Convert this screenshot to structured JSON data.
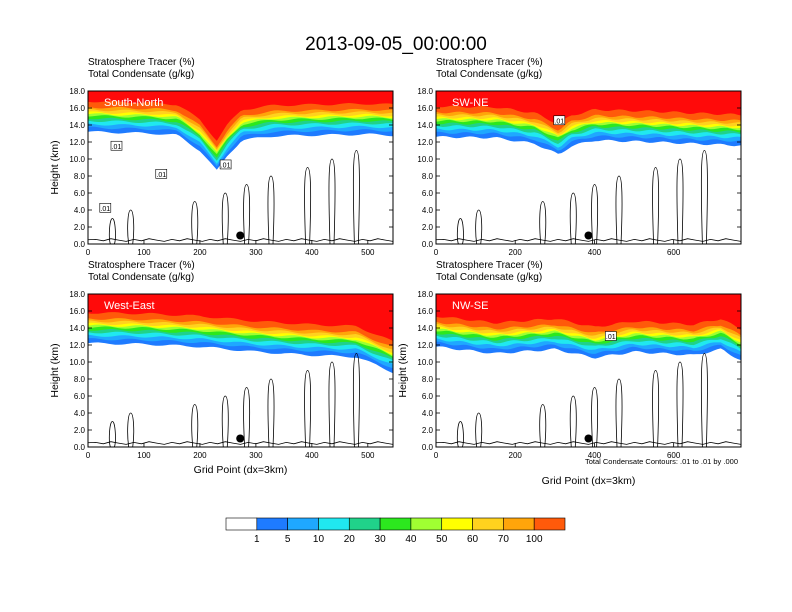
{
  "figure_title": "2013-09-05_00:00:00",
  "colors": {
    "levels": [
      "#ffffff",
      "#1e7bff",
      "#1fa8ff",
      "#20e8f0",
      "#20d28a",
      "#2ce81e",
      "#a0ff32",
      "#ffff00",
      "#ffd21e",
      "#ffa50a",
      "#ff5a0a",
      "#ff0a0a"
    ],
    "line": "#000000"
  },
  "colorbar": {
    "labels": [
      "1",
      "5",
      "10",
      "20",
      "30",
      "40",
      "50",
      "60",
      "70",
      "100"
    ]
  },
  "note": "Total Condensate Contours: .01 to .01 by .000",
  "chart_data": [
    {
      "type": "heatmap",
      "panel_title": "South-North",
      "title_line1": "Stratosphere Tracer   (%)",
      "title_line2": "Total Condensate   (g/kg)",
      "ylabel": "Height (km)",
      "xlabel": "",
      "xlim": [
        0,
        545
      ],
      "ylim": [
        0,
        18
      ],
      "xticks": [
        0,
        100,
        200,
        300,
        400,
        500
      ],
      "yticks": [
        "0.0",
        "2.0",
        "4.0",
        "6.0",
        "8.0",
        "10.0",
        "12.0",
        "14.0",
        "16.0",
        "18.0"
      ],
      "tracer_base_km": [
        [
          0,
          13.2
        ],
        [
          60,
          13.1
        ],
        [
          120,
          13.0
        ],
        [
          160,
          12.8
        ],
        [
          200,
          11.0
        ],
        [
          230,
          8.6
        ],
        [
          250,
          10.5
        ],
        [
          275,
          12.2
        ],
        [
          330,
          12.7
        ],
        [
          400,
          12.8
        ],
        [
          500,
          12.9
        ],
        [
          545,
          12.8
        ]
      ],
      "contour_labels": [
        {
          "x": 50,
          "y": 11.5,
          "t": ".01"
        },
        {
          "x": 130,
          "y": 8.2,
          "t": ".01"
        },
        {
          "x": 245,
          "y": 9.3,
          "t": ".01"
        },
        {
          "x": 30,
          "y": 4.2,
          "t": ".01"
        }
      ],
      "point": [
        272,
        1.0
      ]
    },
    {
      "type": "heatmap",
      "panel_title": "SW-NE",
      "title_line1": "Stratosphere Tracer   (%)",
      "title_line2": "Total Condensate   (g/kg)",
      "ylabel": "",
      "xlabel": "",
      "xlim": [
        0,
        770
      ],
      "ylim": [
        0,
        18
      ],
      "xticks": [
        0,
        200,
        400,
        600
      ],
      "yticks": [
        "0.0",
        "2.0",
        "4.0",
        "6.0",
        "8.0",
        "10.0",
        "12.0",
        "14.0",
        "16.0",
        "18.0"
      ],
      "tracer_base_km": [
        [
          0,
          12.6
        ],
        [
          150,
          12.5
        ],
        [
          250,
          11.8
        ],
        [
          310,
          10.5
        ],
        [
          340,
          11.5
        ],
        [
          400,
          12.2
        ],
        [
          550,
          12.0
        ],
        [
          650,
          11.8
        ],
        [
          770,
          11.6
        ]
      ],
      "contour_labels": [
        {
          "x": 310,
          "y": 14.5,
          "t": ".01"
        }
      ],
      "point": [
        385,
        1.0
      ]
    },
    {
      "type": "heatmap",
      "panel_title": "West-East",
      "title_line1": "Stratosphere Tracer   (%)",
      "title_line2": "Total Condensate   (g/kg)",
      "ylabel": "Height (km)",
      "xlabel": "Grid Point (dx=3km)",
      "xlim": [
        0,
        545
      ],
      "ylim": [
        0,
        18
      ],
      "xticks": [
        0,
        100,
        200,
        300,
        400,
        500
      ],
      "yticks": [
        "0.0",
        "2.0",
        "4.0",
        "6.0",
        "8.0",
        "10.0",
        "12.0",
        "14.0",
        "16.0",
        "18.0"
      ],
      "tracer_base_km": [
        [
          0,
          12.2
        ],
        [
          100,
          12.1
        ],
        [
          200,
          11.8
        ],
        [
          300,
          11.2
        ],
        [
          400,
          10.8
        ],
        [
          480,
          10.6
        ],
        [
          545,
          8.8
        ]
      ],
      "contour_labels": [],
      "point": [
        272,
        1.0
      ]
    },
    {
      "type": "heatmap",
      "panel_title": "NW-SE",
      "title_line1": "Stratosphere Tracer   (%)",
      "title_line2": "Total Condensate   (g/kg)",
      "ylabel": "Height (km)",
      "xlabel": "Grid Point (dx=3km)",
      "xlim": [
        0,
        770
      ],
      "ylim": [
        0,
        18
      ],
      "xticks": [
        0,
        200,
        400,
        600
      ],
      "yticks": [
        "0.0",
        "2.0",
        "4.0",
        "6.0",
        "8.0",
        "10.0",
        "12.0",
        "14.0",
        "16.0",
        "18.0"
      ],
      "tracer_base_km": [
        [
          0,
          11.8
        ],
        [
          150,
          11.0
        ],
        [
          300,
          11.5
        ],
        [
          400,
          10.5
        ],
        [
          500,
          11.2
        ],
        [
          650,
          10.8
        ],
        [
          720,
          11.5
        ],
        [
          770,
          10.2
        ]
      ],
      "contour_labels": [
        {
          "x": 440,
          "y": 13.0,
          "t": ".01"
        }
      ],
      "point": [
        385,
        1.0
      ]
    }
  ]
}
